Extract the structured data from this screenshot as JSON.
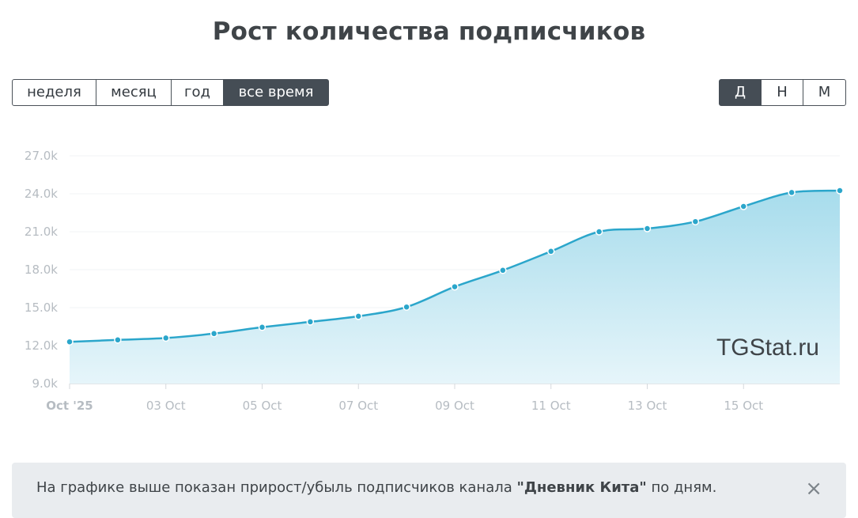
{
  "page": {
    "title": "Рост количества подписчиков"
  },
  "period_buttons": [
    {
      "label": "неделя",
      "active": false
    },
    {
      "label": "месяц",
      "active": false
    },
    {
      "label": "год",
      "active": false
    },
    {
      "label": "все время",
      "active": true
    }
  ],
  "granularity_buttons": [
    {
      "label": "Д",
      "active": true
    },
    {
      "label": "Н",
      "active": false
    },
    {
      "label": "М",
      "active": false
    }
  ],
  "watermark": "TGStat.ru",
  "info": {
    "text_before": "На графике выше показан прирост/убыль подписчиков канала ",
    "channel": "\"Дневник Кита\"",
    "text_after": " по дням.",
    "close_symbol": "×"
  },
  "colors": {
    "line": "#2ba6cb",
    "fill_top": "#a7dcec",
    "fill_bottom": "#e6f5fa",
    "active_button": "#454d55"
  },
  "chart_data": {
    "type": "area",
    "x": [
      "2025-10-01",
      "2025-10-02",
      "2025-10-03",
      "2025-10-04",
      "2025-10-05",
      "2025-10-06",
      "2025-10-07",
      "2025-10-08",
      "2025-10-09",
      "2025-10-10",
      "2025-10-11",
      "2025-10-12",
      "2025-10-13",
      "2025-10-14",
      "2025-10-15",
      "2025-10-16",
      "2025-10-17"
    ],
    "series": [
      {
        "values": [
          12300,
          12450,
          12600,
          12950,
          13450,
          13880,
          14320,
          15050,
          16650,
          17950,
          19450,
          21000,
          21250,
          21800,
          23000,
          24100,
          24250
        ]
      }
    ],
    "x_tick_labels": [
      "Oct '25",
      "03 Oct",
      "05 Oct",
      "07 Oct",
      "09 Oct",
      "11 Oct",
      "13 Oct",
      "15 Oct"
    ],
    "y_tick_labels": [
      "9.0k",
      "12.0k",
      "15.0k",
      "18.0k",
      "21.0k",
      "24.0k",
      "27.0k"
    ],
    "ylim": [
      9000,
      27000
    ],
    "grid": true,
    "legend": "none"
  }
}
